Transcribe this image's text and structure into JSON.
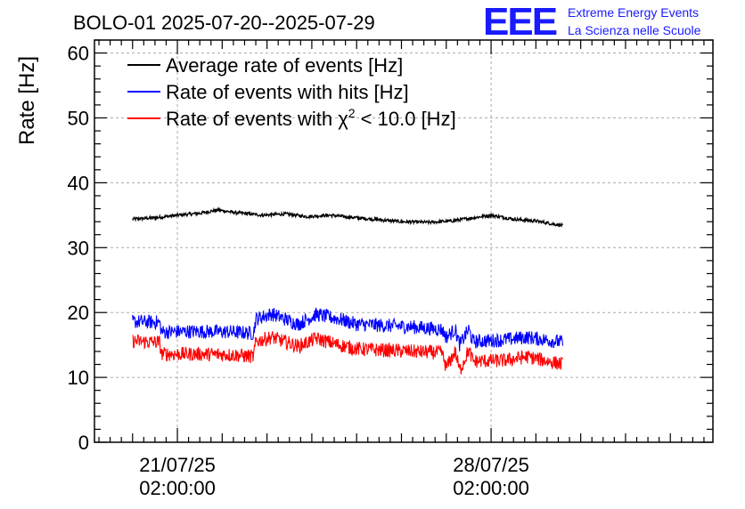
{
  "chart_data": {
    "type": "line",
    "title": "BOLO-01 2025-07-20--2025-07-29",
    "ylabel": "Rate [Hz]",
    "xlabel": "",
    "ylim": [
      0,
      62
    ],
    "xlim_days": [
      -0.85,
      12.95
    ],
    "yticks": [
      "0",
      "10",
      "20",
      "30",
      "40",
      "50",
      "60"
    ],
    "xticks": [
      {
        "label_date": "21/07/25",
        "label_time": "02:00:00",
        "day": 1
      },
      {
        "label_date": "28/07/25",
        "label_time": "02:00:00",
        "day": 8
      }
    ],
    "grid": true,
    "legend_position": "top-left",
    "series": [
      {
        "name": "Average rate of events [Hz]",
        "color": "#000000",
        "noise": 0.25,
        "points": [
          [
            0.0,
            34.4
          ],
          [
            0.5,
            34.6
          ],
          [
            1.0,
            35.0
          ],
          [
            1.5,
            35.3
          ],
          [
            1.9,
            35.8
          ],
          [
            2.3,
            35.4
          ],
          [
            2.9,
            35.0
          ],
          [
            3.4,
            35.2
          ],
          [
            3.9,
            34.8
          ],
          [
            4.4,
            35.0
          ],
          [
            5.0,
            34.6
          ],
          [
            5.5,
            34.3
          ],
          [
            6.0,
            34.0
          ],
          [
            6.6,
            33.9
          ],
          [
            7.1,
            34.1
          ],
          [
            7.6,
            34.6
          ],
          [
            8.0,
            35.0
          ],
          [
            8.5,
            34.4
          ],
          [
            9.0,
            34.1
          ],
          [
            9.6,
            33.4
          ]
        ]
      },
      {
        "name": "Rate of events with hits [Hz]",
        "color": "#0000ff",
        "noise": 1.1,
        "points": [
          [
            0.0,
            18.6
          ],
          [
            0.6,
            18.5
          ],
          [
            0.65,
            17.0
          ],
          [
            1.5,
            17.1
          ],
          [
            2.2,
            17.0
          ],
          [
            2.7,
            16.8
          ],
          [
            2.75,
            19.0
          ],
          [
            3.1,
            19.8
          ],
          [
            3.7,
            18.2
          ],
          [
            4.1,
            19.7
          ],
          [
            4.6,
            19.0
          ],
          [
            5.0,
            18.2
          ],
          [
            5.6,
            18.0
          ],
          [
            6.2,
            17.8
          ],
          [
            6.9,
            17.4
          ],
          [
            7.0,
            16.2
          ],
          [
            7.2,
            17.4
          ],
          [
            7.3,
            15.0
          ],
          [
            7.5,
            17.4
          ],
          [
            7.6,
            15.5
          ],
          [
            8.3,
            15.8
          ],
          [
            8.8,
            16.2
          ],
          [
            9.2,
            15.8
          ],
          [
            9.6,
            15.4
          ]
        ]
      },
      {
        "name": "Rate of events with χ² < 10.0 [Hz]",
        "color": "#ff0000",
        "noise": 1.1,
        "points": [
          [
            0.0,
            15.6
          ],
          [
            0.6,
            15.4
          ],
          [
            0.65,
            13.6
          ],
          [
            1.5,
            13.6
          ],
          [
            2.2,
            13.5
          ],
          [
            2.7,
            13.2
          ],
          [
            2.75,
            15.5
          ],
          [
            3.1,
            16.2
          ],
          [
            3.7,
            14.8
          ],
          [
            4.1,
            16.0
          ],
          [
            4.6,
            15.0
          ],
          [
            5.0,
            14.4
          ],
          [
            5.6,
            14.2
          ],
          [
            6.2,
            14.0
          ],
          [
            6.9,
            13.8
          ],
          [
            7.0,
            11.5
          ],
          [
            7.2,
            14.0
          ],
          [
            7.3,
            11.0
          ],
          [
            7.5,
            14.2
          ],
          [
            7.6,
            12.5
          ],
          [
            8.3,
            12.6
          ],
          [
            8.8,
            13.2
          ],
          [
            9.2,
            12.6
          ],
          [
            9.6,
            12.0
          ]
        ]
      }
    ]
  },
  "legend": {
    "items": [
      {
        "prefix": "Average rate of events [Hz]",
        "color": "#000000"
      },
      {
        "prefix": "Rate of events with hits [Hz]",
        "color": "#0000ff"
      },
      {
        "prefix": "Rate of events with χ",
        "sup": "2",
        "suffix": " < 10.0 [Hz]",
        "color": "#ff0000"
      }
    ]
  },
  "logo": {
    "mark": "EEE",
    "line1": "Extreme Energy Events",
    "line2": "La Scienza nelle Scuole"
  }
}
